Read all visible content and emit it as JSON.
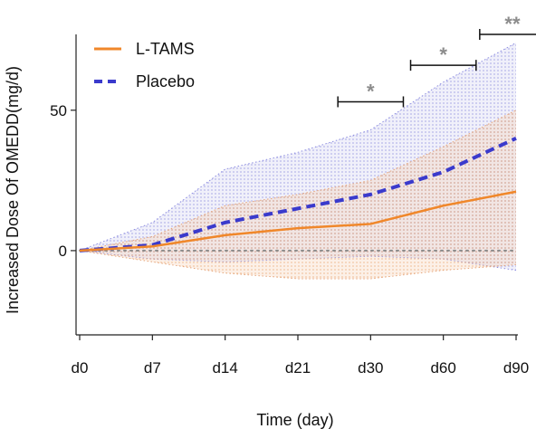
{
  "chart_data": {
    "type": "line",
    "categories": [
      "d0",
      "d7",
      "d14",
      "d21",
      "d30",
      "d60",
      "d90"
    ],
    "xlabel": "Time (day)",
    "ylabel": "Increased Dose Of OMEDD(mg/d)",
    "ylim": [
      -30,
      77
    ],
    "yticks": [
      0,
      50
    ],
    "zero_reference_line": true,
    "legend_position": "top-left",
    "series": [
      {
        "name": "L-TAMS",
        "color": "#f0872a",
        "style": "solid",
        "values": [
          0,
          1.5,
          5.5,
          8,
          9.5,
          16,
          21
        ],
        "band_lower": [
          0,
          -4,
          -8,
          -10,
          -10,
          -7,
          -5
        ],
        "band_upper": [
          0,
          5,
          16,
          20,
          25,
          37,
          50
        ],
        "band_color": "#f3c9a8"
      },
      {
        "name": "Placebo",
        "color": "#3a3acc",
        "style": "dashed",
        "values": [
          0,
          2,
          10,
          15,
          20,
          28,
          40
        ],
        "band_lower": [
          0,
          -3,
          -4,
          -3,
          -2,
          -3,
          -7
        ],
        "band_upper": [
          0,
          10,
          29,
          35,
          43,
          60,
          74
        ],
        "band_color": "#c8c8ee"
      }
    ],
    "significance": [
      {
        "label": "*",
        "from": "d30",
        "to": "d30",
        "offset_from": -0.45,
        "offset_to": 0.45,
        "y": 53
      },
      {
        "label": "*",
        "from": "d60",
        "to": "d60",
        "offset_from": -0.45,
        "offset_to": 0.45,
        "y": 66
      },
      {
        "label": "**",
        "from": "d90",
        "to": "d90",
        "offset_from": -0.5,
        "offset_to": 0.4,
        "y": 77
      }
    ]
  }
}
